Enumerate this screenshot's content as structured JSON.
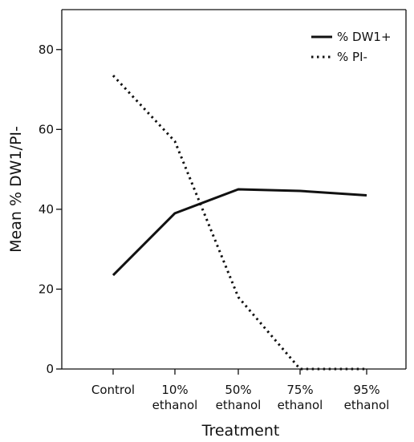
{
  "chart_data": {
    "type": "line",
    "categories": [
      [
        "Control"
      ],
      [
        "10%",
        "ethanol"
      ],
      [
        "50%",
        "ethanol"
      ],
      [
        "75%",
        "ethanol"
      ],
      [
        "95%",
        "ethanol"
      ]
    ],
    "series": [
      {
        "name": "% DW1+",
        "style": "solid",
        "values": [
          23.5,
          39,
          45,
          44.6,
          43.5
        ]
      },
      {
        "name": "% PI-",
        "style": "dotted",
        "values": [
          73.5,
          57,
          18,
          0,
          0
        ]
      }
    ],
    "title": "",
    "xlabel": "Treatment",
    "ylabel": "Mean % DW1/PI-",
    "ylim": [
      0,
      90
    ],
    "yticks": [
      0,
      20,
      40,
      60,
      80
    ],
    "grid": false,
    "legend_position": "top-right",
    "colors": {
      "line": "#111111",
      "axis": "#111111"
    }
  }
}
